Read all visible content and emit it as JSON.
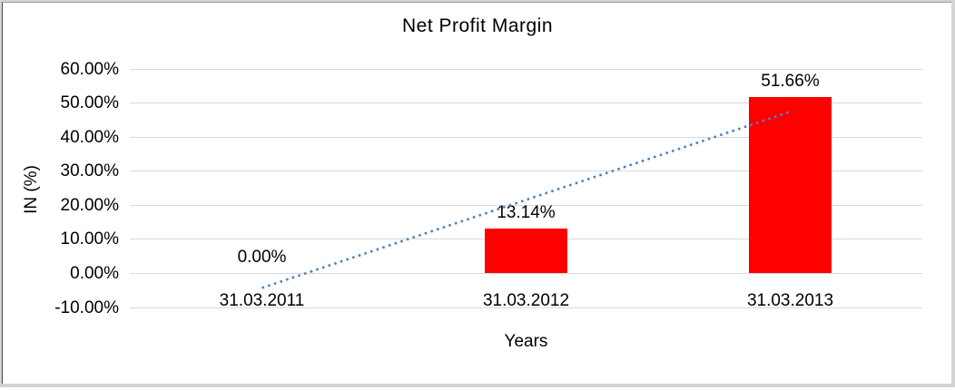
{
  "chart_data": {
    "type": "bar",
    "title": "Net Profit Margin",
    "xlabel": "Years",
    "ylabel": "IN (%)",
    "categories": [
      "31.03.2011",
      "31.03.2012",
      "31.03.2013"
    ],
    "values": [
      0.0,
      13.14,
      51.66
    ],
    "value_labels": [
      "0.00%",
      "13.14%",
      "51.66%"
    ],
    "ylim": [
      -10,
      60
    ],
    "ytick_step": 10,
    "ytick_labels": [
      "60.00%",
      "50.00%",
      "40.00%",
      "30.00%",
      "20.00%",
      "10.00%",
      "0.00%",
      "-10.00%"
    ],
    "grid": true,
    "legend_position": "none",
    "bar_color": "#FF0000",
    "gridline_color": "#D9D9D9",
    "text_color": "#000000",
    "trendline": {
      "kind": "linear",
      "line_style": "dotted",
      "color": "#4F81BD",
      "start_value": -4.26,
      "end_value": 47.43
    }
  }
}
